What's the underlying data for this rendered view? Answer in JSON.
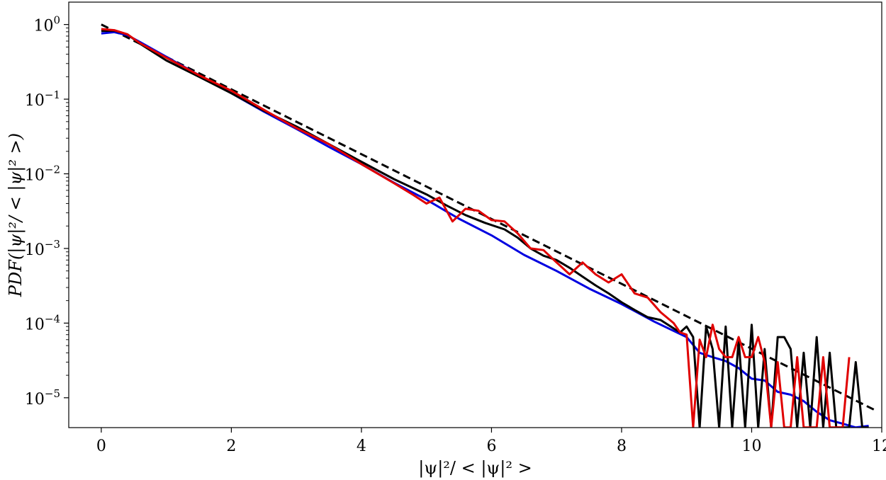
{
  "chart_data": {
    "type": "line",
    "xlabel": "|ψ|²/ < |ψ|² >",
    "ylabel": "PDF(|ψ|²/ < |ψ|² >)",
    "xlim": [
      -0.5,
      12
    ],
    "ylim_log10": [
      -5.4,
      0.3
    ],
    "yscale": "log",
    "grid": false,
    "legend": "none",
    "x_ticks": [
      {
        "value": 0,
        "label": "0"
      },
      {
        "value": 2,
        "label": "2"
      },
      {
        "value": 4,
        "label": "4"
      },
      {
        "value": 6,
        "label": "6"
      },
      {
        "value": 8,
        "label": "8"
      },
      {
        "value": 10,
        "label": "10"
      },
      {
        "value": 12,
        "label": "12"
      }
    ],
    "y_ticks": [
      {
        "log10": 0,
        "base": "10",
        "exp": "0"
      },
      {
        "log10": -1,
        "base": "10",
        "exp": "−1"
      },
      {
        "log10": -2,
        "base": "10",
        "exp": "−2"
      },
      {
        "log10": -3,
        "base": "10",
        "exp": "−3"
      },
      {
        "log10": -4,
        "base": "10",
        "exp": "−4"
      },
      {
        "log10": -5,
        "base": "10",
        "exp": "−5"
      }
    ],
    "series": [
      {
        "color": "#000000",
        "style": "dashed",
        "x": [
          0,
          11.9
        ],
        "y": [
          1.0,
          6.8e-06
        ]
      },
      {
        "color": "#0000e0",
        "style": "solid",
        "x": [
          0,
          0.2,
          0.4,
          0.6,
          1.0,
          1.5,
          2.0,
          2.5,
          3.0,
          3.5,
          4.0,
          4.5,
          5.0,
          5.5,
          6.0,
          6.5,
          7.0,
          7.5,
          8.0,
          8.5,
          9.0,
          9.2,
          9.4,
          9.6,
          9.8,
          10.0,
          10.2,
          10.4,
          10.6,
          10.8,
          11.0,
          11.2,
          11.4,
          11.6,
          11.8
        ],
        "y": [
          0.76,
          0.79,
          0.72,
          0.58,
          0.37,
          0.21,
          0.12,
          0.068,
          0.04,
          0.023,
          0.0135,
          0.0076,
          0.0045,
          0.0025,
          0.0015,
          0.00082,
          0.0005,
          0.00029,
          0.00018,
          0.000105,
          6.5e-05,
          4e-05,
          3.5e-05,
          3.1e-05,
          2.5e-05,
          1.8e-05,
          1.7e-05,
          1.2e-05,
          1.1e-05,
          9e-06,
          6.5e-06,
          5e-06,
          4.5e-06,
          4e-06,
          4.2e-06
        ]
      },
      {
        "color": "#000000",
        "style": "solid",
        "x": [
          0,
          0.2,
          0.4,
          0.6,
          1.0,
          1.5,
          2.0,
          2.5,
          3.0,
          3.5,
          4.0,
          4.5,
          5.0,
          5.3,
          5.6,
          5.9,
          6.2,
          6.4,
          6.6,
          6.8,
          7.0,
          7.2,
          7.4,
          7.6,
          7.8,
          8.0,
          8.2,
          8.4,
          8.6,
          8.8,
          8.9,
          9.0,
          9.1,
          9.2,
          9.3,
          9.4,
          9.5,
          9.6,
          9.7,
          9.8,
          9.9,
          10.0,
          10.1,
          10.2,
          10.3,
          10.4,
          10.5,
          10.6,
          10.7,
          10.8,
          10.9,
          11.0,
          11.1,
          11.2,
          11.3,
          11.4,
          11.5,
          11.6,
          11.7,
          11.8
        ],
        "y": [
          0.82,
          0.83,
          0.74,
          0.55,
          0.33,
          0.2,
          0.12,
          0.07,
          0.043,
          0.025,
          0.0145,
          0.0085,
          0.0053,
          0.0038,
          0.0028,
          0.0022,
          0.0018,
          0.0014,
          0.001,
          0.0008,
          0.0007,
          0.00055,
          0.00042,
          0.00032,
          0.00025,
          0.00019,
          0.00015,
          0.00012,
          0.00011,
          8.5e-05,
          7.5e-05,
          9e-05,
          6.5e-05,
          4e-06,
          9e-05,
          4.5e-05,
          4e-06,
          9e-05,
          4e-06,
          6e-05,
          4e-06,
          9.5e-05,
          4e-06,
          4.5e-05,
          4e-06,
          6.5e-05,
          6.5e-05,
          4.5e-05,
          4e-06,
          4e-05,
          4e-06,
          6.5e-05,
          4e-06,
          4e-05,
          4e-06,
          4e-06,
          4e-06,
          3e-05,
          4e-06,
          4e-06
        ]
      },
      {
        "color": "#e00000",
        "style": "solid",
        "x": [
          0,
          0.2,
          0.4,
          0.6,
          1.0,
          1.5,
          2.0,
          2.5,
          3.0,
          3.5,
          4.0,
          4.5,
          4.8,
          5.0,
          5.2,
          5.4,
          5.6,
          5.8,
          6.0,
          6.2,
          6.4,
          6.6,
          6.8,
          7.0,
          7.2,
          7.4,
          7.6,
          7.8,
          8.0,
          8.2,
          8.4,
          8.6,
          8.8,
          8.9,
          9.0,
          9.1,
          9.2,
          9.3,
          9.4,
          9.5,
          9.6,
          9.7,
          9.8,
          9.9,
          10.0,
          10.1,
          10.2,
          10.3,
          10.4,
          10.5,
          10.6,
          10.7,
          10.8,
          10.9,
          11.0,
          11.1,
          11.2,
          11.3,
          11.4,
          11.5
        ],
        "y": [
          0.87,
          0.84,
          0.74,
          0.56,
          0.36,
          0.21,
          0.13,
          0.072,
          0.041,
          0.025,
          0.0135,
          0.0075,
          0.0052,
          0.004,
          0.0048,
          0.0023,
          0.0034,
          0.0032,
          0.0024,
          0.0023,
          0.0016,
          0.001,
          0.00095,
          0.00065,
          0.00045,
          0.00065,
          0.00045,
          0.00035,
          0.00045,
          0.00025,
          0.00022,
          0.00014,
          0.0001,
          7.5e-05,
          7e-05,
          4e-06,
          6e-05,
          3.5e-05,
          9.5e-05,
          4.5e-05,
          3.5e-05,
          3.5e-05,
          6.5e-05,
          3.5e-05,
          3.5e-05,
          6.5e-05,
          3e-05,
          4e-06,
          3e-05,
          4e-06,
          4e-06,
          3.5e-05,
          4e-06,
          4e-06,
          4e-06,
          3.5e-05,
          4e-06,
          4e-06,
          4e-06,
          3.5e-05
        ]
      }
    ]
  }
}
